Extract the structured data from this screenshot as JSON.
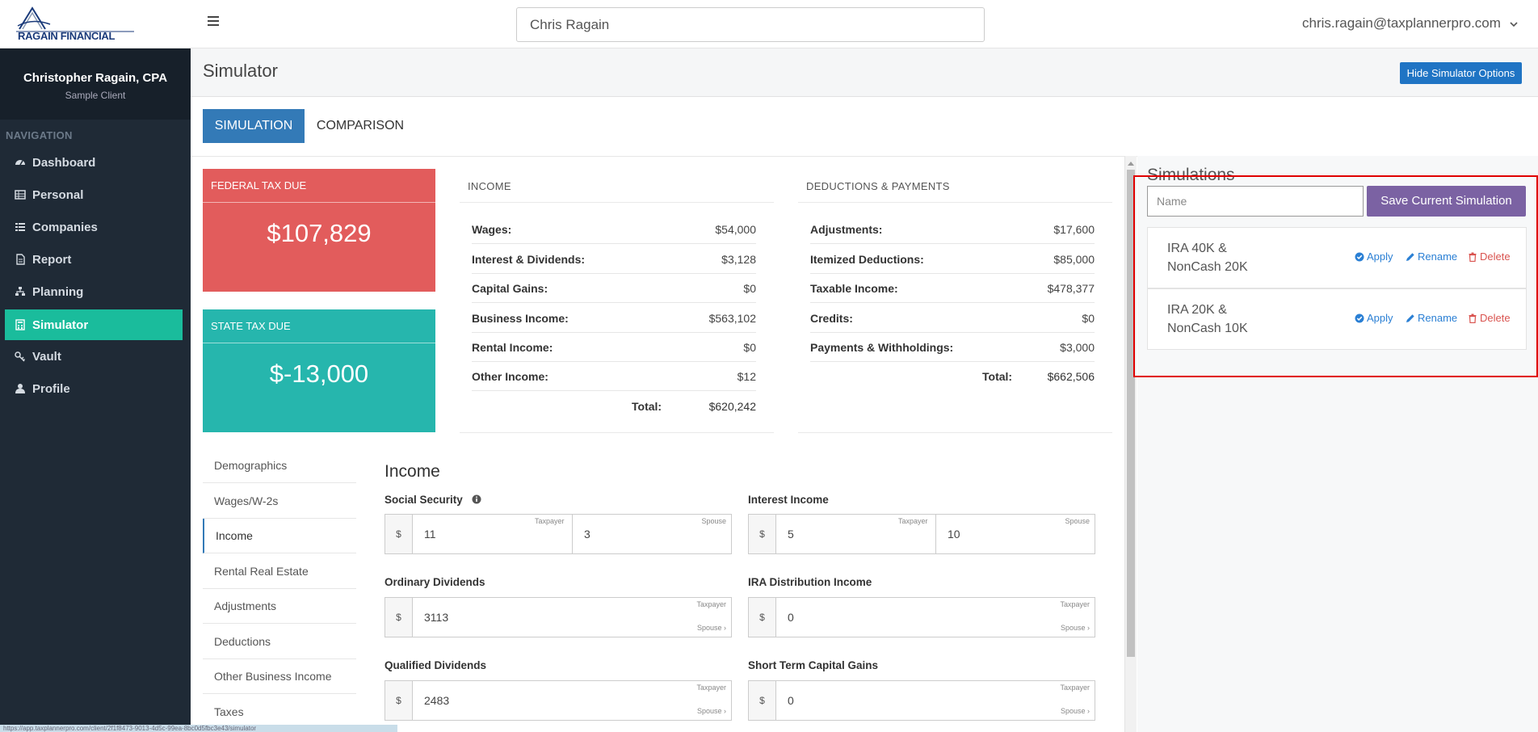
{
  "app": {
    "logo_text": "RAGAIN FINANCIAL",
    "search_value": "Chris Ragain",
    "user_email": "chris.ragain@taxplannerpro.com"
  },
  "sidebar": {
    "profile_name": "Christopher Ragain, CPA",
    "profile_sub": "Sample Client",
    "heading": "NAVIGATION",
    "items": [
      {
        "label": "Dashboard",
        "icon": "dashboard-icon"
      },
      {
        "label": "Personal",
        "icon": "table-icon"
      },
      {
        "label": "Companies",
        "icon": "list-icon"
      },
      {
        "label": "Report",
        "icon": "document-icon"
      },
      {
        "label": "Planning",
        "icon": "sitemap-icon"
      },
      {
        "label": "Simulator",
        "icon": "calculator-icon",
        "active": true
      },
      {
        "label": "Vault",
        "icon": "key-icon"
      },
      {
        "label": "Profile",
        "icon": "user-icon"
      }
    ]
  },
  "header": {
    "title": "Simulator",
    "hide_button": "Hide Simulator Options"
  },
  "tabs": {
    "simulation": "SIMULATION",
    "comparison": "COMPARISON"
  },
  "summary": {
    "federal_label": "FEDERAL TAX DUE",
    "federal_value": "$107,829",
    "state_label": "STATE TAX DUE",
    "state_value": "$-13,000",
    "income_heading": "INCOME",
    "income_rows": [
      {
        "label": "Wages:",
        "value": "$54,000"
      },
      {
        "label": "Interest & Dividends:",
        "value": "$3,128"
      },
      {
        "label": "Capital Gains:",
        "value": "$0"
      },
      {
        "label": "Business Income:",
        "value": "$563,102"
      },
      {
        "label": "Rental Income:",
        "value": "$0"
      },
      {
        "label": "Other Income:",
        "value": "$12"
      }
    ],
    "income_total_label": "Total:",
    "income_total": "$620,242",
    "deductions_heading": "DEDUCTIONS & PAYMENTS",
    "deduction_rows": [
      {
        "label": "Adjustments:",
        "value": "$17,600"
      },
      {
        "label": "Itemized Deductions:",
        "value": "$85,000"
      },
      {
        "label": "Taxable Income:",
        "value": "$478,377"
      },
      {
        "label": "Credits:",
        "value": "$0"
      },
      {
        "label": "Payments & Withholdings:",
        "value": "$3,000"
      }
    ],
    "deductions_total_label": "Total:",
    "deductions_total": "$662,506"
  },
  "subnav": {
    "items": [
      "Demographics",
      "Wages/W-2s",
      "Income",
      "Rental Real Estate",
      "Adjustments",
      "Deductions",
      "Other Business Income",
      "Taxes"
    ],
    "active": "Income"
  },
  "income_form": {
    "title": "Income",
    "currency": "$",
    "taxpayer": "Taxpayer",
    "spouse": "Spouse",
    "spouse_link": "Spouse ›",
    "social_security": {
      "label": "Social Security",
      "taxpayer": "11",
      "spouse": "3"
    },
    "interest_income": {
      "label": "Interest Income",
      "taxpayer": "5",
      "spouse": "10"
    },
    "ordinary_dividends": {
      "label": "Ordinary Dividends",
      "value": "3113"
    },
    "ira_distribution": {
      "label": "IRA Distribution Income",
      "value": "0"
    },
    "qualified_dividends": {
      "label": "Qualified Dividends",
      "value": "2483"
    },
    "short_term_gains": {
      "label": "Short Term Capital Gains",
      "value": "0"
    }
  },
  "simulations": {
    "title": "Simulations",
    "name_placeholder": "Name",
    "save_button": "Save Current Simulation",
    "apply": "Apply",
    "rename": "Rename",
    "delete": "Delete",
    "items": [
      {
        "name": "IRA 40K & NonCash 20K"
      },
      {
        "name": "IRA 20K & NonCash 10K"
      }
    ]
  },
  "colors": {
    "sidebar_bg": "#1f2a36",
    "active_nav": "#1abc9c",
    "federal": "#e25c5c",
    "state": "#26b6ad",
    "primary": "#337ab7",
    "save_button": "#7b62a3",
    "highlight": "#e00000"
  },
  "status_bar": "https://app.taxplannerpro.com/client/2f1f8473-9013-4d5c-99ea-8bc0d5fbc3e43/simulator"
}
